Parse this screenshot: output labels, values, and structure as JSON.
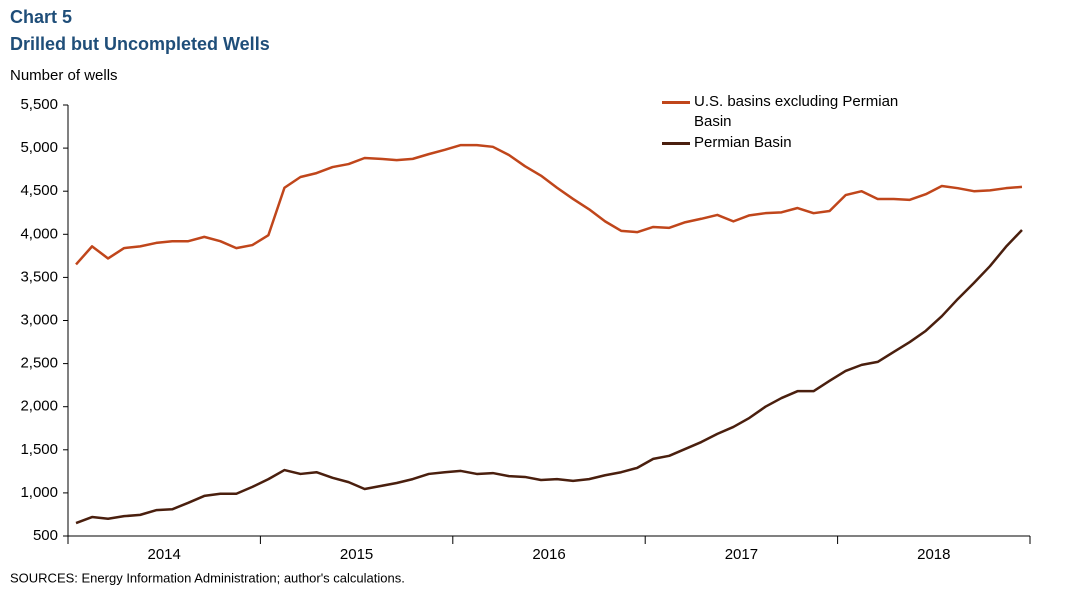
{
  "chart_data": {
    "type": "line",
    "title": "Chart 5",
    "subtitle": "Drilled but Uncompleted Wells",
    "y_axis_label": "Number of wells",
    "source": "SOURCES:  Energy Information Administration;  author's calculations.",
    "categories": [
      null,
      null,
      null,
      null,
      null,
      null,
      null,
      null,
      null,
      null,
      null,
      null,
      null,
      null,
      null,
      null,
      null,
      null,
      null,
      null,
      null,
      null,
      null,
      null,
      null,
      null,
      null,
      null,
      null,
      null,
      null,
      null,
      null,
      null,
      null,
      null,
      null,
      null,
      null,
      null,
      null,
      null,
      null,
      null,
      null,
      null,
      null,
      null,
      null,
      null,
      null,
      null,
      null,
      null,
      null,
      null,
      null,
      null,
      null,
      null
    ],
    "x_groups": [
      "2014",
      "2015",
      "2016",
      "2017",
      "2018"
    ],
    "series": [
      {
        "name": "U.S. basins excluding Permian Basin",
        "color": "#c0461b",
        "values": [
          3650,
          3860,
          3720,
          3840,
          3860,
          3900,
          3920,
          3920,
          3970,
          3920,
          3840,
          3875,
          3990,
          4540,
          4665,
          4710,
          4780,
          4815,
          4885,
          4875,
          4860,
          4875,
          4930,
          4980,
          5035,
          5035,
          5015,
          4920,
          4790,
          4680,
          4540,
          4410,
          4290,
          4150,
          4040,
          4025,
          4085,
          4075,
          4140,
          4180,
          4225,
          4150,
          4220,
          4245,
          4255,
          4305,
          4245,
          4270,
          4455,
          4500,
          4410,
          4410,
          4400,
          4465,
          4560,
          4535,
          4500,
          4510,
          4535,
          4550
        ]
      },
      {
        "name": "Permian Basin",
        "color": "#4a1f0e",
        "values": [
          650,
          720,
          700,
          730,
          745,
          800,
          810,
          885,
          965,
          990,
          990,
          1070,
          1160,
          1265,
          1220,
          1240,
          1175,
          1125,
          1045,
          1080,
          1115,
          1160,
          1220,
          1240,
          1255,
          1220,
          1230,
          1195,
          1185,
          1150,
          1160,
          1140,
          1160,
          1205,
          1240,
          1290,
          1395,
          1430,
          1510,
          1590,
          1685,
          1765,
          1870,
          2000,
          2100,
          2180,
          2180,
          2300,
          2415,
          2485,
          2520,
          2635,
          2750,
          2880,
          3050,
          3250,
          3435,
          3630,
          3855,
          4050
        ]
      }
    ],
    "ylim": [
      500,
      5500
    ],
    "yticks": [
      {
        "value": 500,
        "label": "500"
      },
      {
        "value": 1000,
        "label": "1,000"
      },
      {
        "value": 1500,
        "label": "1,500"
      },
      {
        "value": 2000,
        "label": "2,000"
      },
      {
        "value": 2500,
        "label": "2,500"
      },
      {
        "value": 3000,
        "label": "3,000"
      },
      {
        "value": 3500,
        "label": "3,500"
      },
      {
        "value": 4000,
        "label": "4,000"
      },
      {
        "value": 4500,
        "label": "4,500"
      },
      {
        "value": 5000,
        "label": "5,000"
      },
      {
        "value": 5500,
        "label": "5,500"
      }
    ],
    "grid": false,
    "legend": "upper right"
  }
}
